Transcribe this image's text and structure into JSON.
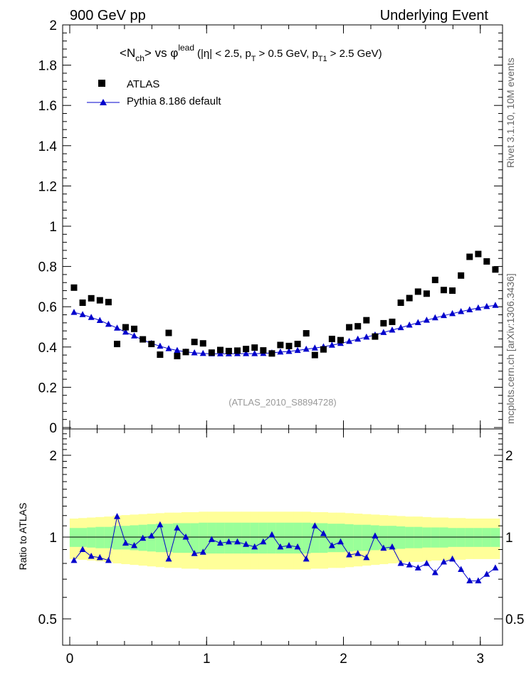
{
  "header": {
    "left": "900 GeV pp",
    "right": "Underlying Event"
  },
  "title": {
    "lt": "<",
    "n": "N",
    "ch": "ch",
    "gt": ">",
    "vs": "vs",
    "phi": "φ",
    "lead": "lead",
    "p1": "(|η| < 2.5, p",
    "t1": "T",
    "p2": "> 0.5 GeV, p",
    "t2": "T1",
    "p3": "> 2.5 GeV)"
  },
  "side_labels": {
    "rivet": "Rivet 3.1.10, 10M events",
    "mcplots": "mcplots.cern.ch [arXiv:1306.3436]"
  },
  "watermark": "(ATLAS_2010_S8894728)",
  "legend": {
    "atlas": "ATLAS",
    "pythia": "Pythia 8.186 default"
  },
  "ratio_ylabel": "Ratio to ATLAS",
  "colors": {
    "mc": "#0000cc",
    "data": "#000000",
    "band_inner": "#99ff99",
    "band_outer": "#ffff99"
  },
  "chart_data": [
    {
      "type": "scatter",
      "panel": "main",
      "xlim": [
        0,
        3.1416
      ],
      "ylim": [
        0,
        2
      ],
      "yticks": [
        {
          "v": 0,
          "label": "0"
        },
        {
          "v": 0.2,
          "label": "0.2"
        },
        {
          "v": 0.4,
          "label": "0.4"
        },
        {
          "v": 0.6,
          "label": "0.6"
        },
        {
          "v": 0.8,
          "label": "0.8"
        },
        {
          "v": 1.0,
          "label": "1"
        },
        {
          "v": 1.2,
          "label": "1.2"
        },
        {
          "v": 1.4,
          "label": "1.4"
        },
        {
          "v": 1.6,
          "label": "1.6"
        },
        {
          "v": 1.8,
          "label": "1.8"
        },
        {
          "v": 2.0,
          "label": "2"
        }
      ],
      "x": [
        0.031,
        0.094,
        0.157,
        0.22,
        0.283,
        0.346,
        0.408,
        0.471,
        0.534,
        0.597,
        0.66,
        0.723,
        0.785,
        0.848,
        0.911,
        0.974,
        1.037,
        1.1,
        1.162,
        1.225,
        1.288,
        1.351,
        1.414,
        1.477,
        1.539,
        1.602,
        1.665,
        1.728,
        1.791,
        1.854,
        1.916,
        1.979,
        2.042,
        2.105,
        2.168,
        2.231,
        2.293,
        2.356,
        2.419,
        2.482,
        2.545,
        2.608,
        2.67,
        2.733,
        2.796,
        2.859,
        2.922,
        2.985,
        3.047,
        3.11
      ],
      "series": [
        {
          "name": "ATLAS",
          "values": [
            0.695,
            0.62,
            0.642,
            0.632,
            0.623,
            0.415,
            0.498,
            0.49,
            0.438,
            0.415,
            0.362,
            0.47,
            0.355,
            0.375,
            0.425,
            0.418,
            0.372,
            0.385,
            0.38,
            0.382,
            0.39,
            0.397,
            0.383,
            0.368,
            0.41,
            0.405,
            0.415,
            0.468,
            0.36,
            0.388,
            0.44,
            0.434,
            0.498,
            0.503,
            0.533,
            0.452,
            0.518,
            0.525,
            0.62,
            0.643,
            0.675,
            0.665,
            0.733,
            0.683,
            0.68,
            0.755,
            0.848,
            0.862,
            0.825,
            0.785
          ]
        },
        {
          "name": "Pythia 8.186 default",
          "values": [
            0.572,
            0.561,
            0.547,
            0.532,
            0.513,
            0.494,
            0.474,
            0.455,
            0.435,
            0.418,
            0.404,
            0.392,
            0.383,
            0.376,
            0.371,
            0.368,
            0.366,
            0.366,
            0.366,
            0.367,
            0.367,
            0.367,
            0.368,
            0.371,
            0.375,
            0.378,
            0.383,
            0.389,
            0.395,
            0.401,
            0.409,
            0.418,
            0.428,
            0.439,
            0.449,
            0.46,
            0.472,
            0.484,
            0.496,
            0.509,
            0.521,
            0.533,
            0.545,
            0.556,
            0.566,
            0.576,
            0.585,
            0.594,
            0.601,
            0.607
          ]
        }
      ]
    },
    {
      "type": "line",
      "panel": "ratio",
      "xlim": [
        0,
        3.1416
      ],
      "ylim": [
        0.4,
        2.5
      ],
      "log_y": true,
      "yticks": [
        {
          "v": 0.5,
          "label": "0.5"
        },
        {
          "v": 1,
          "label": "1"
        },
        {
          "v": 2,
          "label": "2"
        }
      ],
      "xticks": [
        {
          "v": 0,
          "label": "0"
        },
        {
          "v": 1,
          "label": "1"
        },
        {
          "v": 2,
          "label": "2"
        },
        {
          "v": 3,
          "label": "3"
        }
      ],
      "x": [
        0.031,
        0.094,
        0.157,
        0.22,
        0.283,
        0.346,
        0.408,
        0.471,
        0.534,
        0.597,
        0.66,
        0.723,
        0.785,
        0.848,
        0.911,
        0.974,
        1.037,
        1.1,
        1.162,
        1.225,
        1.288,
        1.351,
        1.414,
        1.477,
        1.539,
        1.602,
        1.665,
        1.728,
        1.791,
        1.854,
        1.916,
        1.979,
        2.042,
        2.105,
        2.168,
        2.231,
        2.293,
        2.356,
        2.419,
        2.482,
        2.545,
        2.608,
        2.67,
        2.733,
        2.796,
        2.859,
        2.922,
        2.985,
        3.047,
        3.11
      ],
      "ratio": [
        0.82,
        0.9,
        0.85,
        0.84,
        0.82,
        1.19,
        0.95,
        0.93,
        0.99,
        1.01,
        1.11,
        0.83,
        1.08,
        1.0,
        0.87,
        0.88,
        0.98,
        0.95,
        0.96,
        0.96,
        0.94,
        0.92,
        0.96,
        1.02,
        0.92,
        0.93,
        0.92,
        0.83,
        1.1,
        1.03,
        0.93,
        0.96,
        0.86,
        0.87,
        0.84,
        1.01,
        0.91,
        0.92,
        0.8,
        0.79,
        0.77,
        0.8,
        0.74,
        0.81,
        0.83,
        0.76,
        0.69,
        0.69,
        0.73,
        0.77
      ],
      "band_inner_halfwidth": [
        0.08,
        0.08,
        0.085,
        0.09,
        0.09,
        0.1,
        0.1,
        0.105,
        0.11,
        0.115,
        0.12,
        0.12,
        0.125,
        0.125,
        0.125,
        0.13,
        0.13,
        0.13,
        0.13,
        0.13,
        0.13,
        0.13,
        0.13,
        0.13,
        0.13,
        0.13,
        0.13,
        0.13,
        0.125,
        0.125,
        0.12,
        0.12,
        0.115,
        0.11,
        0.11,
        0.105,
        0.1,
        0.1,
        0.095,
        0.09,
        0.09,
        0.085,
        0.085,
        0.085,
        0.08,
        0.08,
        0.08,
        0.08,
        0.08,
        0.08
      ],
      "band_outer_halfwidth": [
        0.17,
        0.175,
        0.18,
        0.185,
        0.19,
        0.2,
        0.205,
        0.21,
        0.215,
        0.22,
        0.225,
        0.23,
        0.23,
        0.235,
        0.235,
        0.24,
        0.24,
        0.24,
        0.24,
        0.24,
        0.24,
        0.24,
        0.24,
        0.24,
        0.24,
        0.24,
        0.24,
        0.24,
        0.235,
        0.235,
        0.23,
        0.23,
        0.225,
        0.22,
        0.215,
        0.21,
        0.205,
        0.2,
        0.195,
        0.19,
        0.19,
        0.185,
        0.18,
        0.18,
        0.175,
        0.175,
        0.17,
        0.17,
        0.17,
        0.17
      ]
    }
  ]
}
